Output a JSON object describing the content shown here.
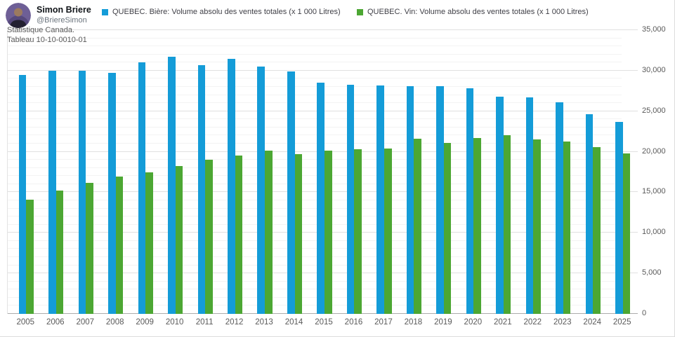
{
  "profile": {
    "name": "Simon Briere",
    "handle": "@BriereSimon"
  },
  "source_note": {
    "line1": "Statistique Canada.",
    "line2": "Tableau 10-10-0010-01"
  },
  "legend": {
    "items": [
      {
        "label": "QUEBEC. Bière: Volume absolu des ventes totales (x 1 000 Litres)",
        "color": "#149CD8"
      },
      {
        "label": "QUEBEC. Vin: Volume absolu des ventes totales (x 1 000 Litres)",
        "color": "#4CA733"
      }
    ]
  },
  "chart_data": {
    "type": "bar",
    "title": "",
    "categories": [
      "2005",
      "2006",
      "2007",
      "2008",
      "2009",
      "2010",
      "2011",
      "2012",
      "2013",
      "2014",
      "2015",
      "2016",
      "2017",
      "2018",
      "2019",
      "2020",
      "2021",
      "2022",
      "2023",
      "2024",
      "2025"
    ],
    "series": [
      {
        "name": "QUEBEC. Bière: Volume absolu des ventes totales (x 1 000 Litres)",
        "color": "#149CD8",
        "values": [
          29500,
          30000,
          30000,
          29700,
          31000,
          31700,
          30700,
          31500,
          30500,
          29900,
          28500,
          28300,
          28200,
          28100,
          28100,
          27800,
          26800,
          26700,
          26100,
          24600,
          23700
        ]
      },
      {
        "name": "QUEBEC. Vin: Volume absolu des ventes totales (x 1 000 Litres)",
        "color": "#4CA733",
        "values": [
          14100,
          15200,
          16200,
          16900,
          17500,
          18200,
          19000,
          19500,
          20100,
          19700,
          20100,
          20300,
          20400,
          21600,
          21100,
          21700,
          22000,
          21500,
          21300,
          20600,
          19800
        ]
      }
    ],
    "xlabel": "",
    "ylabel": "",
    "ylim": [
      0,
      35000
    ],
    "ytick_step": 5000,
    "yminor_step": 1000,
    "ytick_labels": [
      "0",
      "5,000",
      "10,000",
      "15,000",
      "20,000",
      "25,000",
      "30,000",
      "35,000"
    ],
    "value_axis_side": "right",
    "legend_position": "top",
    "grid": true
  },
  "colors": {
    "beer": "#149CD8",
    "wine": "#4CA733",
    "axis_text": "#595959",
    "legend_text": "#3f3f46",
    "grid_minor": "#f3f3f3",
    "grid_major": "#e0e0e0",
    "zero_line": "#ababab"
  }
}
